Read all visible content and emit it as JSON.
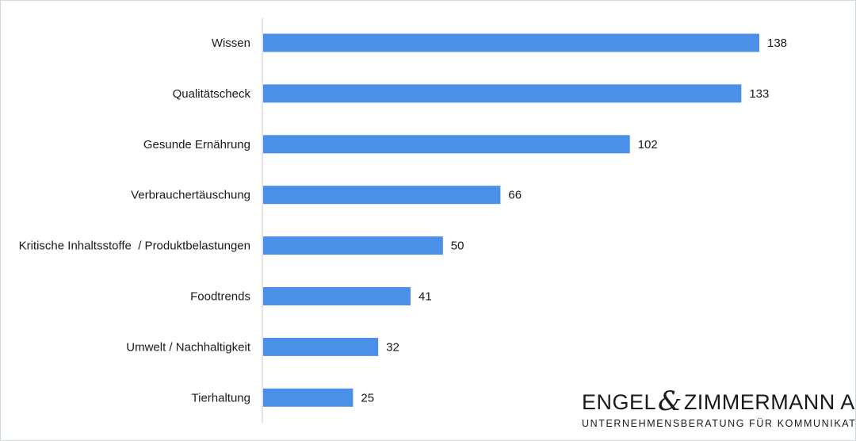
{
  "chart_data": {
    "type": "bar",
    "orientation": "horizontal",
    "categories": [
      "Wissen",
      "Qualitätscheck",
      "Gesunde Ernährung",
      "Verbrauchertäuschung",
      "Kritische Inhaltsstoffe  / Produktbelastungen",
      "Foodtrends",
      "Umwelt / Nachhaltigkeit",
      "Tierhaltung"
    ],
    "values": [
      138,
      133,
      102,
      66,
      50,
      41,
      32,
      25
    ],
    "title": "",
    "xlabel": "",
    "ylabel": "",
    "xlim": [
      0,
      138
    ],
    "grid": false,
    "legend": "none",
    "data_labels": true,
    "colors": {
      "bar": "#4a90e8",
      "axis": "#c8c8c8"
    }
  },
  "logo": {
    "name_part1": "ENGEL",
    "ampersand": "&",
    "name_part2": "ZIMMERMANN AG",
    "tagline": "UNTERNEHMENSBERATUNG FÜR KOMMUNIKATION"
  }
}
